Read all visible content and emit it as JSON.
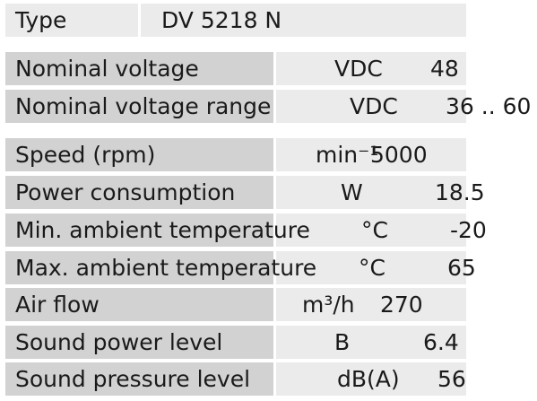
{
  "header": {
    "label": "Type",
    "value": "DV 5218 N"
  },
  "rows": [
    {
      "label": "Nominal voltage",
      "unit": "VDC",
      "value": "48"
    },
    {
      "label": "Nominal voltage range",
      "unit": "VDC",
      "value": "36 .. 60"
    },
    {
      "label": "Speed (rpm)",
      "unit": "min⁻¹",
      "value": "5000"
    },
    {
      "label": "Power consumption",
      "unit": "W",
      "value": "18.5"
    },
    {
      "label": "Min. ambient temperature",
      "unit": "°C",
      "value": "-20"
    },
    {
      "label": "Max. ambient temperature",
      "unit": "°C",
      "value": "65"
    },
    {
      "label": "Air flow",
      "unit": "m³/h",
      "value": "270"
    },
    {
      "label": "Sound power level",
      "unit": "B",
      "value": "6.4"
    },
    {
      "label": "Sound pressure level",
      "unit": "dB(A)",
      "value": "56"
    }
  ]
}
